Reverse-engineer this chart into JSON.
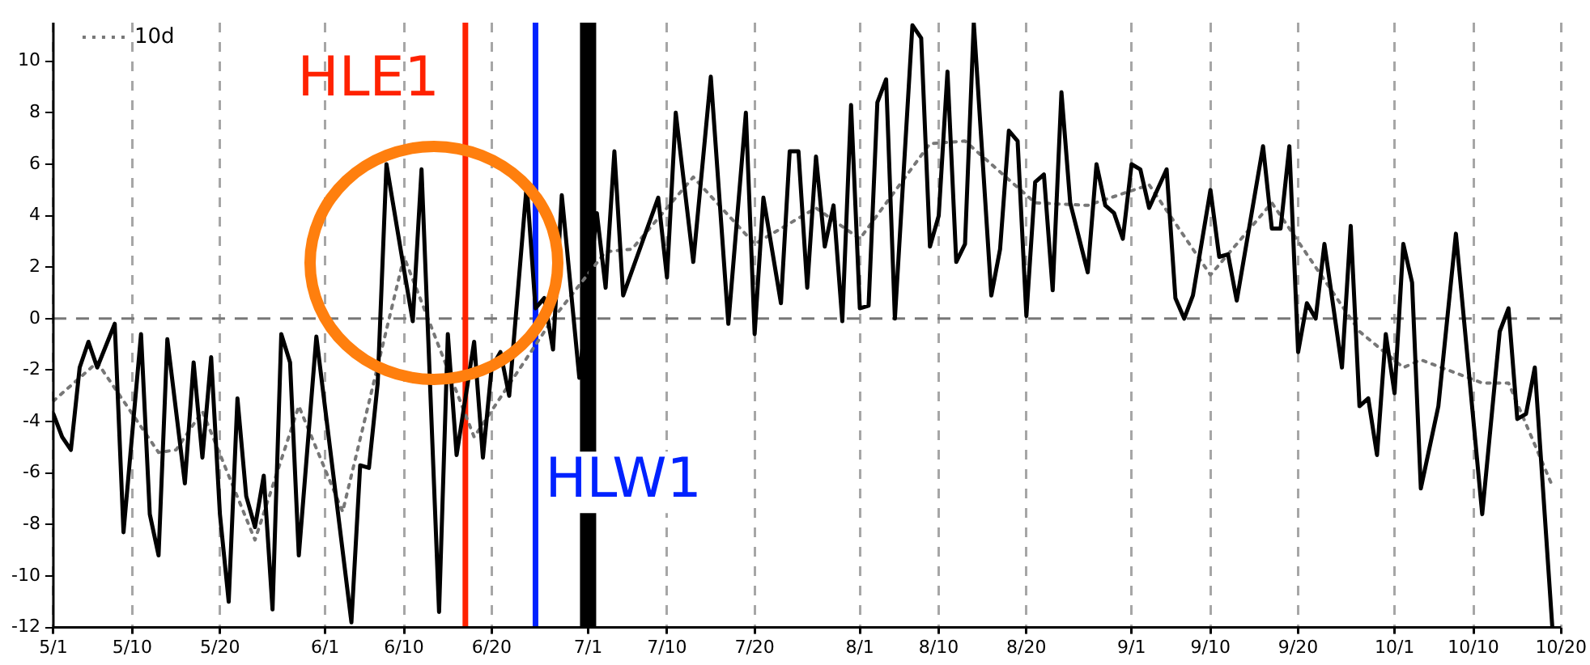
{
  "chart_data": {
    "type": "line",
    "series": [
      {
        "color": "#000000",
        "x": [
          "--05-01",
          "--05-02",
          "--05-03",
          "--05-04",
          "--05-05",
          "--05-06",
          "--05-08",
          "--05-09",
          "--05-11",
          "--05-12",
          "--05-13",
          "--05-14",
          "--05-16",
          "--05-17",
          "--05-18",
          "--05-19",
          "--05-20",
          "--05-21",
          "--05-22",
          "--05-23",
          "--05-24",
          "--05-25",
          "--05-26",
          "--05-27",
          "--05-28",
          "--05-29",
          "--05-31",
          "--06-04",
          "--06-05",
          "--06-06",
          "--06-07",
          "--06-08",
          "--06-10",
          "--06-11",
          "--06-12",
          "--06-14",
          "--06-15",
          "--06-16",
          "--06-18",
          "--06-19",
          "--06-20",
          "--06-21",
          "--06-22",
          "--06-24",
          "--06-25",
          "--06-26",
          "--06-27",
          "--06-28",
          "--06-30",
          "--07-02",
          "--07-03",
          "--07-04",
          "--07-05",
          "--07-07",
          "--07-09",
          "--07-10",
          "--07-11",
          "--07-13",
          "--07-15",
          "--07-17",
          "--07-19",
          "--07-20",
          "--07-21",
          "--07-23",
          "--07-24",
          "--07-25",
          "--07-26",
          "--07-27",
          "--07-28",
          "--07-29",
          "--07-30",
          "--07-31",
          "--08-01",
          "--08-02",
          "--08-03",
          "--08-04",
          "--08-05",
          "--08-07",
          "--08-08",
          "--08-09",
          "--08-10",
          "--08-11",
          "--08-12",
          "--08-13",
          "--08-14",
          "--08-16",
          "--08-17",
          "--08-18",
          "--08-19",
          "--08-20",
          "--08-21",
          "--08-22",
          "--08-23",
          "--08-24",
          "--08-25",
          "--08-27",
          "--08-28",
          "--08-29",
          "--08-30",
          "--08-31",
          "--09-01",
          "--09-02",
          "--09-03",
          "--09-05",
          "--09-06",
          "--09-07",
          "--09-08",
          "--09-10",
          "--09-11",
          "--09-12",
          "--09-13",
          "--09-16",
          "--09-17",
          "--09-18",
          "--09-19",
          "--09-20",
          "--09-21",
          "--09-22",
          "--09-23",
          "--09-25",
          "--09-26",
          "--09-27",
          "--09-28",
          "--09-29",
          "--09-30",
          "--10-01",
          "--10-02",
          "--10-03",
          "--10-04",
          "--10-06",
          "--10-08",
          "--10-11",
          "--10-13",
          "--10-14",
          "--10-15",
          "--10-16",
          "--10-17",
          "--10-19"
        ],
        "values": [
          -3.7,
          -4.6,
          -5.1,
          -1.9,
          -0.9,
          -1.9,
          -0.2,
          -8.3,
          -0.6,
          -7.6,
          -9.2,
          -0.8,
          -6.4,
          -1.7,
          -5.4,
          -1.5,
          -7.6,
          -11,
          -3.1,
          -6.9,
          -8.1,
          -6.1,
          -11.3,
          -0.6,
          -1.7,
          -9.2,
          -0.7,
          -11.8,
          -5.7,
          -5.8,
          -2.5,
          6,
          1.9,
          -0.1,
          5.8,
          -11.4,
          -0.6,
          -5.3,
          -0.9,
          -5.4,
          -1.9,
          -1.3,
          -3,
          5.2,
          0.4,
          0.8,
          -1.2,
          4.8,
          -2.3,
          4.1,
          1.2,
          6.5,
          0.9,
          2.8,
          4.7,
          1.6,
          8,
          2.2,
          9.4,
          -0.2,
          8,
          -0.6,
          4.7,
          0.6,
          6.5,
          6.5,
          1.2,
          6.3,
          2.8,
          4.4,
          -0.1,
          8.3,
          0.4,
          0.5,
          8.4,
          9.3,
          0,
          11.4,
          10.9,
          2.8,
          4,
          9.6,
          2.2,
          2.9,
          11.5,
          0.9,
          2.7,
          7.3,
          6.9,
          0.1,
          5.3,
          5.6,
          1.1,
          8.8,
          4.5,
          1.8,
          6,
          4.4,
          4.1,
          3.1,
          6,
          5.8,
          4.3,
          5.8,
          0.8,
          0,
          0.9,
          5,
          2.4,
          2.5,
          0.7,
          6.7,
          3.5,
          3.5,
          6.7,
          -1.3,
          0.6,
          0,
          2.9,
          -1.9,
          3.6,
          -3.4,
          -3.1,
          -5.3,
          -0.6,
          -2.9,
          2.9,
          1.4,
          -6.6,
          -3.4,
          3.3,
          -7.6,
          -0.5,
          0.4,
          -3.9,
          -3.7,
          -1.9,
          -12
        ]
      },
      {
        "name": "10d",
        "color": "#777777",
        "line_style": "dotted",
        "x": [
          "--05-01",
          "--05-06",
          "--05-13",
          "--05-15",
          "--05-18",
          "--05-24",
          "--05-29",
          "--06-03",
          "--06-10",
          "--06-18",
          "--06-27",
          "--07-03",
          "--07-06",
          "--07-13",
          "--07-20",
          "--07-27",
          "--08-01",
          "--08-09",
          "--08-13",
          "--08-21",
          "--08-27",
          "--09-03",
          "--09-10",
          "--09-17",
          "--09-27",
          "--10-02",
          "--10-04",
          "--10-11",
          "--10-14",
          "--10-19"
        ],
        "values": [
          -3.2,
          -1.7,
          -5.2,
          -5.1,
          -3.6,
          -8.6,
          -3.4,
          -7.5,
          2.4,
          -4.6,
          0,
          2.6,
          2.7,
          5.5,
          2.9,
          4.3,
          3.1,
          6.8,
          6.9,
          4.5,
          4.4,
          5.2,
          1.7,
          4.5,
          -0.5,
          -1.9,
          -1.6,
          -2.5,
          -2.5,
          -6.5
        ]
      }
    ],
    "xlim": [
      "--05-01",
      "--10-20"
    ],
    "xticks": [
      {
        "value": "--05-01",
        "label": "5/1"
      },
      {
        "value": "--05-10",
        "label": "5/10"
      },
      {
        "value": "--05-20",
        "label": "5/20"
      },
      {
        "value": "--06-01",
        "label": "6/1"
      },
      {
        "value": "--06-10",
        "label": "6/10"
      },
      {
        "value": "--06-20",
        "label": "6/20"
      },
      {
        "value": "--07-01",
        "label": "7/1"
      },
      {
        "value": "--07-10",
        "label": "7/10"
      },
      {
        "value": "--07-20",
        "label": "7/20"
      },
      {
        "value": "--08-01",
        "label": "8/1"
      },
      {
        "value": "--08-10",
        "label": "8/10"
      },
      {
        "value": "--08-20",
        "label": "8/20"
      },
      {
        "value": "--09-01",
        "label": "9/1"
      },
      {
        "value": "--09-10",
        "label": "9/10"
      },
      {
        "value": "--09-20",
        "label": "9/20"
      },
      {
        "value": "--10-01",
        "label": "10/1"
      },
      {
        "value": "--10-10",
        "label": "10/10"
      },
      {
        "value": "--10-20",
        "label": "10/20"
      }
    ],
    "ylim": [
      -12,
      11.5
    ],
    "yticks": [
      -12,
      -10,
      -8,
      -6,
      -4,
      -2,
      0,
      2,
      4,
      6,
      8,
      10
    ],
    "ref_lines": [
      {
        "axis": "y",
        "value": 0,
        "color": "#777777",
        "line_style": "dashed"
      },
      {
        "axis": "x",
        "value": "--06-17",
        "label": "HLE1",
        "color": "#ff2200"
      },
      {
        "axis": "x",
        "value": "--06-25",
        "label": "HLW1",
        "color": "#0022ff"
      },
      {
        "axis": "x",
        "value": "--07-01",
        "color": "#000000"
      }
    ],
    "grid": "x",
    "legend": "top left",
    "marker": "none",
    "line_style": "solid"
  }
}
